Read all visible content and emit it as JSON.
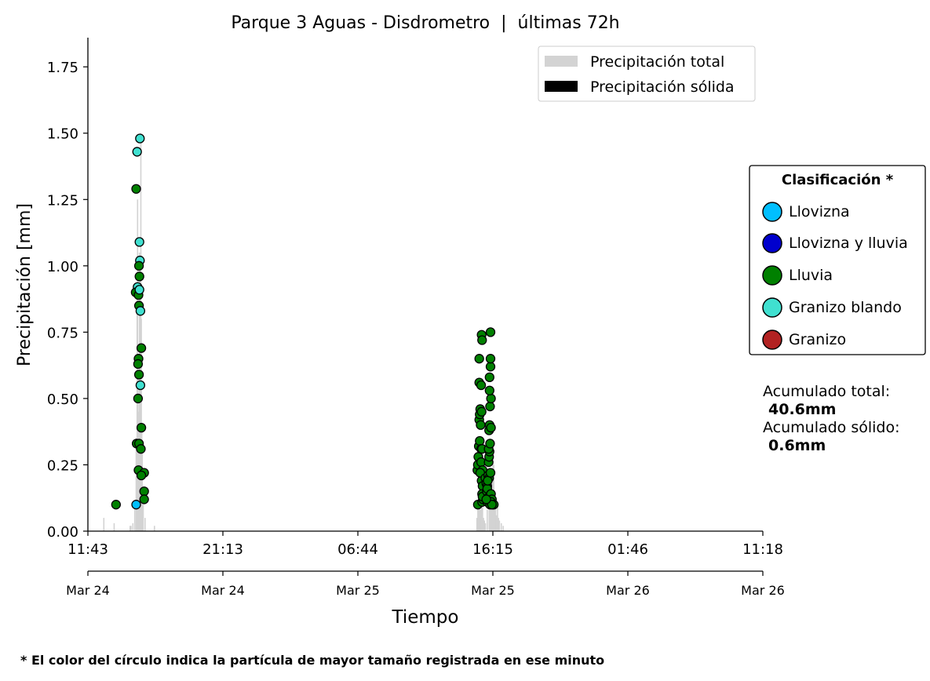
{
  "chart_data": {
    "type": "bar+scatter",
    "title": "Parque 3 Aguas - Disdrometro  |  últimas 72h",
    "xlabel": "Tiempo",
    "ylabel": "Precipitación [mm]",
    "ylim": [
      0,
      1.86
    ],
    "y_ticks": [
      "0.00",
      "0.25",
      "0.50",
      "0.75",
      "1.00",
      "1.25",
      "1.50",
      "1.75"
    ],
    "x_range_hours": [
      0,
      72
    ],
    "x_ticks_time": [
      "11:43",
      "21:13",
      "06:44",
      "16:15",
      "01:46",
      "11:18"
    ],
    "x_ticks_date": [
      "Mar 24",
      "Mar 24",
      "Mar 25",
      "Mar 25",
      "Mar 26",
      "Mar 26"
    ],
    "grid": false,
    "legend_main": {
      "placement": "top-right",
      "entries": [
        {
          "label": "Precipitación total",
          "color": "#d3d3d3"
        },
        {
          "label": "Precipitación sólida",
          "color": "#000000"
        }
      ]
    },
    "legend_class": {
      "title": "Clasificación *",
      "placement": "right",
      "entries": [
        {
          "label": "Llovizna",
          "color": "#00bfff"
        },
        {
          "label": "Llovizna y lluvia",
          "color": "#0000cd"
        },
        {
          "label": "Lluvia",
          "color": "#008000"
        },
        {
          "label": "Granizo blando",
          "color": "#40e0d0"
        },
        {
          "label": "Granizo",
          "color": "#b22222"
        }
      ]
    },
    "bars_total": [
      [
        1.7,
        0.05
      ],
      [
        2.8,
        0.03
      ],
      [
        4.5,
        0.02
      ],
      [
        4.6,
        0.02
      ],
      [
        4.8,
        0.03
      ],
      [
        5.0,
        0.1
      ],
      [
        5.15,
        0.35
      ],
      [
        5.25,
        0.9
      ],
      [
        5.3,
        1.25
      ],
      [
        5.35,
        0.6
      ],
      [
        5.4,
        0.45
      ],
      [
        5.45,
        0.3
      ],
      [
        5.5,
        1.05
      ],
      [
        5.55,
        0.95
      ],
      [
        5.6,
        0.55
      ],
      [
        5.65,
        1.5
      ],
      [
        5.7,
        0.8
      ],
      [
        5.75,
        0.4
      ],
      [
        5.8,
        0.3
      ],
      [
        5.9,
        0.1
      ],
      [
        6.1,
        0.05
      ],
      [
        7.1,
        0.02
      ],
      [
        41.5,
        0.05
      ],
      [
        41.6,
        0.1
      ],
      [
        41.7,
        0.15
      ],
      [
        41.8,
        0.12
      ],
      [
        41.9,
        0.08
      ],
      [
        42.0,
        0.2
      ],
      [
        42.1,
        0.35
      ],
      [
        42.2,
        0.05
      ],
      [
        42.3,
        0.04
      ],
      [
        42.4,
        0.03
      ],
      [
        42.6,
        0.08
      ],
      [
        42.8,
        0.18
      ],
      [
        42.9,
        0.1
      ],
      [
        43.0,
        0.14
      ],
      [
        43.1,
        0.22
      ],
      [
        43.2,
        0.3
      ],
      [
        43.3,
        0.25
      ],
      [
        43.4,
        0.12
      ],
      [
        43.5,
        0.09
      ],
      [
        43.6,
        0.06
      ],
      [
        43.7,
        0.1
      ],
      [
        43.8,
        0.05
      ],
      [
        43.9,
        0.04
      ],
      [
        44.1,
        0.03
      ],
      [
        44.3,
        0.02
      ]
    ],
    "bars_solid": [],
    "points": [
      {
        "x": 3.0,
        "y": 0.1,
        "c": "Lluvia"
      },
      {
        "x": 5.15,
        "y": 0.1,
        "c": "Llovizna"
      },
      {
        "x": 5.15,
        "y": 1.29,
        "c": "Lluvia"
      },
      {
        "x": 5.25,
        "y": 1.43,
        "c": "Granizo blando"
      },
      {
        "x": 5.55,
        "y": 1.48,
        "c": "Granizo blando"
      },
      {
        "x": 5.5,
        "y": 1.09,
        "c": "Granizo blando"
      },
      {
        "x": 5.55,
        "y": 1.02,
        "c": "Granizo blando"
      },
      {
        "x": 5.45,
        "y": 1.0,
        "c": "Lluvia"
      },
      {
        "x": 5.5,
        "y": 0.96,
        "c": "Lluvia"
      },
      {
        "x": 5.3,
        "y": 0.92,
        "c": "Granizo blando"
      },
      {
        "x": 5.1,
        "y": 0.9,
        "c": "Lluvia"
      },
      {
        "x": 5.4,
        "y": 0.89,
        "c": "Lluvia"
      },
      {
        "x": 5.5,
        "y": 0.91,
        "c": "Granizo blando"
      },
      {
        "x": 5.45,
        "y": 0.85,
        "c": "Lluvia"
      },
      {
        "x": 5.6,
        "y": 0.83,
        "c": "Granizo blando"
      },
      {
        "x": 5.7,
        "y": 0.69,
        "c": "Lluvia"
      },
      {
        "x": 5.4,
        "y": 0.65,
        "c": "Lluvia"
      },
      {
        "x": 5.35,
        "y": 0.63,
        "c": "Lluvia"
      },
      {
        "x": 5.45,
        "y": 0.59,
        "c": "Lluvia"
      },
      {
        "x": 5.6,
        "y": 0.55,
        "c": "Granizo blando"
      },
      {
        "x": 5.35,
        "y": 0.5,
        "c": "Lluvia"
      },
      {
        "x": 5.7,
        "y": 0.39,
        "c": "Lluvia"
      },
      {
        "x": 5.2,
        "y": 0.33,
        "c": "Lluvia"
      },
      {
        "x": 5.45,
        "y": 0.33,
        "c": "Lluvia"
      },
      {
        "x": 5.65,
        "y": 0.31,
        "c": "Lluvia"
      },
      {
        "x": 5.4,
        "y": 0.23,
        "c": "Lluvia"
      },
      {
        "x": 6.0,
        "y": 0.22,
        "c": "Lluvia"
      },
      {
        "x": 5.7,
        "y": 0.21,
        "c": "Lluvia"
      },
      {
        "x": 6.0,
        "y": 0.15,
        "c": "Lluvia"
      },
      {
        "x": 6.0,
        "y": 0.12,
        "c": "Lluvia"
      },
      {
        "x": 41.6,
        "y": 0.1,
        "c": "Lluvia"
      },
      {
        "x": 41.55,
        "y": 0.23,
        "c": "Lluvia"
      },
      {
        "x": 41.6,
        "y": 0.25,
        "c": "Lluvia"
      },
      {
        "x": 41.65,
        "y": 0.28,
        "c": "Lluvia"
      },
      {
        "x": 41.7,
        "y": 0.32,
        "c": "Lluvia"
      },
      {
        "x": 41.8,
        "y": 0.34,
        "c": "Lluvia"
      },
      {
        "x": 41.75,
        "y": 0.42,
        "c": "Lluvia"
      },
      {
        "x": 41.8,
        "y": 0.44,
        "c": "Lluvia"
      },
      {
        "x": 41.85,
        "y": 0.46,
        "c": "Lluvia"
      },
      {
        "x": 41.9,
        "y": 0.4,
        "c": "Lluvia"
      },
      {
        "x": 41.75,
        "y": 0.56,
        "c": "Lluvia"
      },
      {
        "x": 41.75,
        "y": 0.65,
        "c": "Lluvia"
      },
      {
        "x": 41.95,
        "y": 0.55,
        "c": "Lluvia"
      },
      {
        "x": 42.0,
        "y": 0.74,
        "c": "Lluvia"
      },
      {
        "x": 42.05,
        "y": 0.72,
        "c": "Lluvia"
      },
      {
        "x": 42.0,
        "y": 0.45,
        "c": "Lluvia"
      },
      {
        "x": 41.95,
        "y": 0.31,
        "c": "Lluvia"
      },
      {
        "x": 42.05,
        "y": 0.31,
        "c": "Lluvia"
      },
      {
        "x": 41.95,
        "y": 0.26,
        "c": "Lluvia"
      },
      {
        "x": 42.1,
        "y": 0.23,
        "c": "Lluvia"
      },
      {
        "x": 42.0,
        "y": 0.19,
        "c": "Lluvia"
      },
      {
        "x": 42.1,
        "y": 0.17,
        "c": "Lluvia"
      },
      {
        "x": 42.05,
        "y": 0.14,
        "c": "Lluvia"
      },
      {
        "x": 42.05,
        "y": 0.11,
        "c": "Lluvia"
      },
      {
        "x": 42.15,
        "y": 0.12,
        "c": "Lluvia"
      },
      {
        "x": 42.1,
        "y": 0.13,
        "c": "Lluvia"
      },
      {
        "x": 41.85,
        "y": 0.22,
        "c": "Lluvia"
      },
      {
        "x": 42.4,
        "y": 0.2,
        "c": "Lluvia"
      },
      {
        "x": 42.5,
        "y": 0.18,
        "c": "Lluvia"
      },
      {
        "x": 42.6,
        "y": 0.17,
        "c": "Lluvia"
      },
      {
        "x": 42.55,
        "y": 0.15,
        "c": "Lluvia"
      },
      {
        "x": 42.7,
        "y": 0.12,
        "c": "Lluvia"
      },
      {
        "x": 42.6,
        "y": 0.11,
        "c": "Lluvia"
      },
      {
        "x": 42.8,
        "y": 0.13,
        "c": "Lluvia"
      },
      {
        "x": 42.6,
        "y": 0.16,
        "c": "Lluvia"
      },
      {
        "x": 42.7,
        "y": 0.21,
        "c": "Lluvia"
      },
      {
        "x": 42.8,
        "y": 0.2,
        "c": "Lluvia"
      },
      {
        "x": 42.65,
        "y": 0.19,
        "c": "Lluvia"
      },
      {
        "x": 42.9,
        "y": 0.1,
        "c": "Lluvia"
      },
      {
        "x": 42.75,
        "y": 0.26,
        "c": "Lluvia"
      },
      {
        "x": 42.8,
        "y": 0.28,
        "c": "Lluvia"
      },
      {
        "x": 42.85,
        "y": 0.3,
        "c": "Lluvia"
      },
      {
        "x": 42.75,
        "y": 0.31,
        "c": "Lluvia"
      },
      {
        "x": 42.9,
        "y": 0.33,
        "c": "Lluvia"
      },
      {
        "x": 42.8,
        "y": 0.38,
        "c": "Lluvia"
      },
      {
        "x": 42.85,
        "y": 0.4,
        "c": "Lluvia"
      },
      {
        "x": 43.0,
        "y": 0.39,
        "c": "Lluvia"
      },
      {
        "x": 42.9,
        "y": 0.47,
        "c": "Lluvia"
      },
      {
        "x": 43.0,
        "y": 0.5,
        "c": "Lluvia"
      },
      {
        "x": 42.85,
        "y": 0.53,
        "c": "Lluvia"
      },
      {
        "x": 42.85,
        "y": 0.58,
        "c": "Lluvia"
      },
      {
        "x": 42.95,
        "y": 0.62,
        "c": "Lluvia"
      },
      {
        "x": 42.95,
        "y": 0.65,
        "c": "Lluvia"
      },
      {
        "x": 42.95,
        "y": 0.75,
        "c": "Lluvia"
      },
      {
        "x": 42.95,
        "y": 0.22,
        "c": "Lluvia"
      },
      {
        "x": 43.0,
        "y": 0.14,
        "c": "Lluvia"
      },
      {
        "x": 43.1,
        "y": 0.12,
        "c": "Lluvia"
      },
      {
        "x": 43.0,
        "y": 0.11,
        "c": "Lluvia"
      },
      {
        "x": 43.2,
        "y": 0.1,
        "c": "Lluvia"
      },
      {
        "x": 43.3,
        "y": 0.1,
        "c": "Lluvia"
      },
      {
        "x": 43.1,
        "y": 0.1,
        "c": "Lluvia"
      },
      {
        "x": 42.5,
        "y": 0.12,
        "c": "Lluvia"
      }
    ]
  },
  "totals": {
    "total_label": "Acumulado total:",
    "total_value": "40.6mm",
    "solid_label": "Acumulado sólido:",
    "solid_value": "0.6mm"
  },
  "footnote": "* El color del círculo indica la partícula de mayor tamaño registrada en ese minuto"
}
